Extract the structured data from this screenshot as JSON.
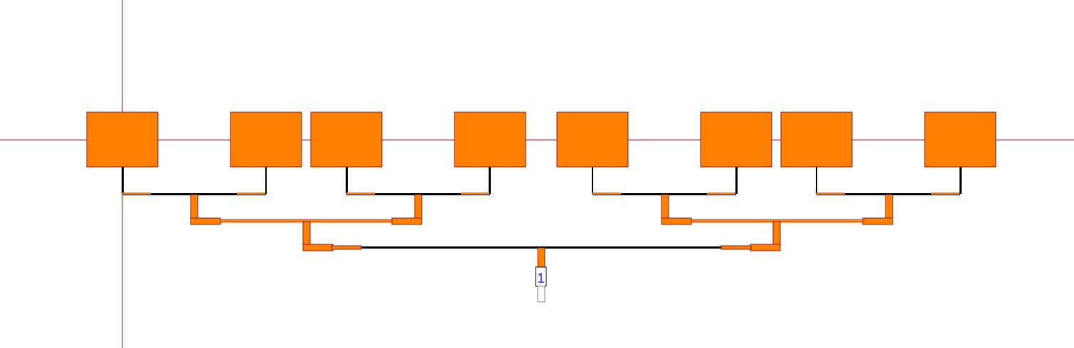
{
  "colors": {
    "patch": "#ff8000",
    "outline": "#8b1a1a",
    "axis": "#a01818",
    "line": "#000000",
    "port_text": "#2020ff",
    "background": "#ffffff"
  },
  "port": {
    "label": "1"
  },
  "layout_elements": {
    "patch_count": 8,
    "port_count": 1
  }
}
